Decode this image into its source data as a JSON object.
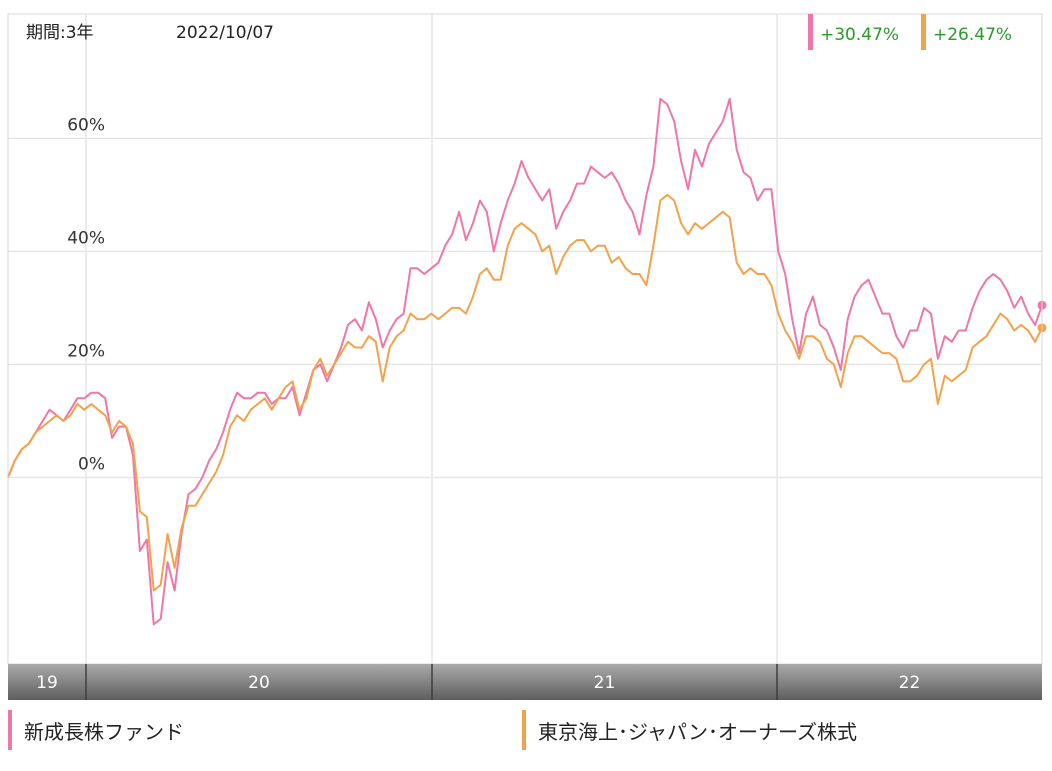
{
  "header": {
    "period_label": "期間:3年",
    "date": "2022/10/07",
    "returns": [
      {
        "value": "+30.47%",
        "color": "#ee77aa"
      },
      {
        "value": "+26.47%",
        "color": "#f2a24a"
      }
    ]
  },
  "legend": [
    {
      "name": "新成長株ファンド",
      "color": "#ee77aa"
    },
    {
      "name": "東京海上･ジャパン･オーナーズ株式",
      "color": "#f2a24a"
    }
  ],
  "chart_data": {
    "type": "line",
    "y_ticks": [
      "0%",
      "20%",
      "40%",
      "60%"
    ],
    "ylim": [
      -33,
      82
    ],
    "x_year_labels": [
      "19",
      "20",
      "21",
      "22"
    ],
    "grid": true,
    "series": [
      {
        "name": "新成長株ファンド",
        "color": "#ee77aa",
        "values": [
          0,
          3,
          5,
          6,
          8,
          10,
          12,
          11,
          10,
          12,
          14,
          14,
          15,
          15,
          14,
          7,
          9,
          9,
          4,
          -13,
          -11,
          -26,
          -25,
          -15,
          -20,
          -10,
          -3,
          -2,
          0,
          3,
          5,
          8,
          12,
          15,
          14,
          14,
          15,
          15,
          13,
          14,
          14,
          16,
          11,
          15,
          19,
          20,
          17,
          20,
          23,
          27,
          28,
          26,
          31,
          28,
          23,
          26,
          28,
          29,
          37,
          37,
          36,
          37,
          38,
          41,
          43,
          47,
          42,
          45,
          49,
          47,
          40,
          45,
          49,
          52,
          56,
          53,
          51,
          49,
          51,
          44,
          47,
          49,
          52,
          52,
          55,
          54,
          53,
          54,
          52,
          49,
          47,
          43,
          50,
          55,
          67,
          66,
          63,
          56,
          51,
          58,
          55,
          59,
          61,
          63,
          67,
          58,
          54,
          53,
          49,
          51,
          51,
          40,
          36,
          28,
          22,
          29,
          32,
          27,
          26,
          23,
          19,
          28,
          32,
          34,
          35,
          32,
          29,
          29,
          25,
          23,
          26,
          26,
          30,
          29,
          21,
          25,
          24,
          26,
          26,
          30,
          33,
          35,
          36,
          35,
          33,
          30,
          32,
          29,
          27,
          30.47
        ]
      },
      {
        "name": "東京海上･ジャパン･オーナーズ株式",
        "color": "#f2a24a",
        "values": [
          0,
          3,
          5,
          6,
          8,
          9,
          10,
          11,
          10,
          11,
          13,
          12,
          13,
          12,
          11,
          8,
          10,
          9,
          6,
          -6,
          -7,
          -20,
          -19,
          -10,
          -16,
          -9,
          -5,
          -5,
          -3,
          -1,
          1,
          4,
          9,
          11,
          10,
          12,
          13,
          14,
          12,
          14,
          16,
          17,
          12,
          14,
          19,
          21,
          18,
          20,
          22,
          24,
          23,
          23,
          25,
          24,
          17,
          23,
          25,
          26,
          29,
          28,
          28,
          29,
          28,
          29,
          30,
          30,
          29,
          32,
          36,
          37,
          35,
          35,
          41,
          44,
          45,
          44,
          43,
          40,
          41,
          36,
          39,
          41,
          42,
          42,
          40,
          41,
          41,
          38,
          39,
          37,
          36,
          36,
          34,
          41,
          49,
          50,
          49,
          45,
          43,
          45,
          44,
          45,
          46,
          47,
          46,
          38,
          36,
          37,
          36,
          36,
          34,
          29,
          26,
          24,
          21,
          25,
          25,
          24,
          21,
          20,
          16,
          22,
          25,
          25,
          24,
          23,
          22,
          22,
          21,
          17,
          17,
          18,
          20,
          21,
          13,
          18,
          17,
          18,
          19,
          23,
          24,
          25,
          27,
          29,
          28,
          26,
          27,
          26,
          24,
          26.47
        ]
      }
    ]
  }
}
